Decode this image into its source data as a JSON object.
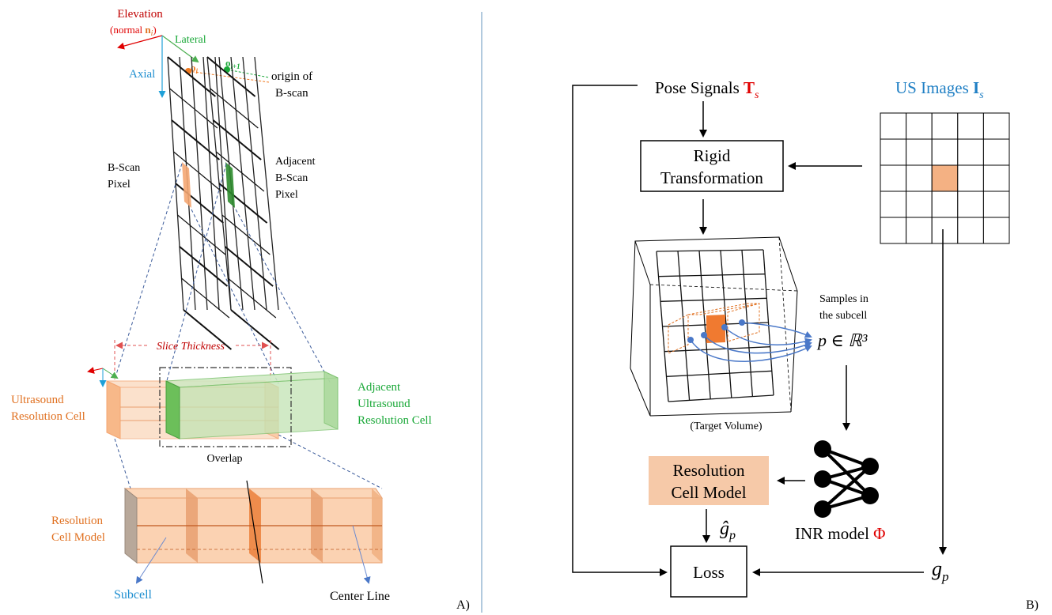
{
  "panelA": {
    "id_label": "A)",
    "axes": {
      "elevation": "Elevation",
      "normal_prefix": "(normal ",
      "normal_symbol": "n",
      "normal_sub": "i",
      "normal_suffix": ")",
      "lateral": "Lateral",
      "axial": "Axial"
    },
    "origin_labels": {
      "oi": "o",
      "oi_sub": "i",
      "oi1": "o",
      "oi1_sub": "i+1"
    },
    "origin_text": [
      "origin of",
      "B-scan"
    ],
    "bscan_pixel": [
      "B-Scan",
      "Pixel"
    ],
    "adjacent_bscan_pixel": [
      "Adjacent",
      "B-Scan",
      "Pixel"
    ],
    "slice_thickness": "Slice Thickness",
    "us_resolution_cell": [
      "Ultrasound",
      "Resolution Cell"
    ],
    "adjacent_us_resolution_cell": [
      "Adjacent",
      "Ultrasound",
      "Resolution Cell"
    ],
    "overlap": "Overlap",
    "resolution_cell_model": [
      "Resolution",
      "Cell Model"
    ],
    "subcell": "Subcell",
    "center_line": "Center Line"
  },
  "panelB": {
    "id_label": "B)",
    "pose_signals": "Pose Signals ",
    "pose_symbol": "T",
    "pose_sub": "s",
    "us_images": "US Images ",
    "us_symbol": "I",
    "us_sub": "s",
    "rigid_transformation": [
      "Rigid",
      "Transformation"
    ],
    "samples": [
      "Samples in",
      "the subcell"
    ],
    "sample_formula": "p ∈ ℝ³",
    "target_volume": "(Target Volume)",
    "resolution_cell_model": [
      "Resolution",
      "Cell Model"
    ],
    "inr_model": "INR model ",
    "inr_symbol": "Φ",
    "g_hat": "ĝ",
    "g": "g",
    "g_sub": "p",
    "loss": "Loss"
  },
  "colors": {
    "red": "#e00000",
    "orange": "#e07020",
    "green": "#1aa838",
    "blue": "#1f6fb5",
    "peach": "#f6c9a8",
    "peach_dark": "#f4a672",
    "green_fill": "#9ed08e",
    "divider": "#7fa7c9",
    "dashed_blue": "#3a5a9a"
  },
  "us_grid": {
    "rows": 5,
    "cols": 5,
    "highlight_row": 2,
    "highlight_col": 2
  }
}
